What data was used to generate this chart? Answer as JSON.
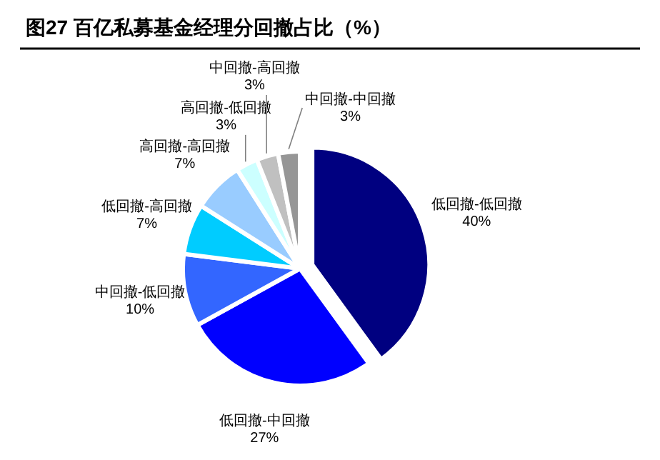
{
  "chart_data": {
    "type": "pie",
    "title": "图27 百亿私募基金经理分回撤占比（%）",
    "categories": [
      "低回撤-低回撤",
      "低回撤-中回撤",
      "中回撤-低回撤",
      "低回撤-高回撤",
      "高回撤-高回撤",
      "高回撤-低回撤",
      "中回撤-高回撤",
      "中回撤-中回撤"
    ],
    "values": [
      40,
      27,
      10,
      7,
      7,
      3,
      3,
      3
    ],
    "value_labels": [
      "40%",
      "27%",
      "10%",
      "7%",
      "7%",
      "3%",
      "3%",
      "3%"
    ],
    "data_labels": true,
    "colors": [
      "#000080",
      "#0000ff",
      "#3366ff",
      "#00ccff",
      "#99ccff",
      "#ccffff",
      "#c0c0c0",
      "#969696"
    ]
  }
}
